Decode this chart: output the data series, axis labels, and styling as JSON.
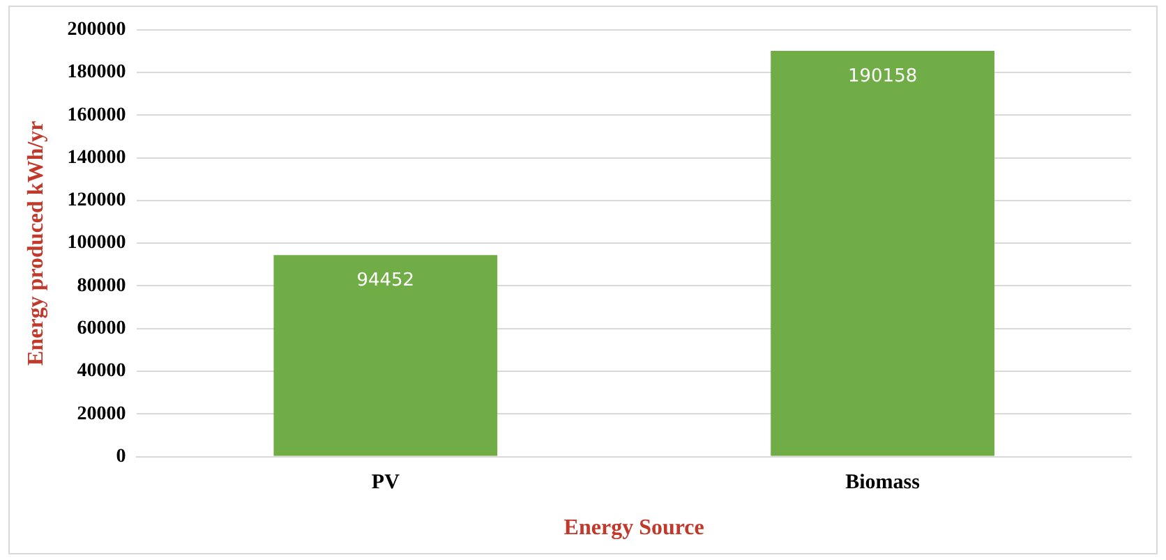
{
  "chart_data": {
    "type": "bar",
    "xlabel": "Energy Source",
    "ylabel": "Energy produced kWh/yr",
    "categories": [
      "PV",
      "Biomass"
    ],
    "values": [
      94452,
      190158
    ],
    "color": "#70ad47",
    "ylim": [
      0,
      200000
    ],
    "yticks": [
      0,
      20000,
      40000,
      60000,
      80000,
      100000,
      120000,
      140000,
      160000,
      180000,
      200000
    ],
    "grid": "y",
    "legend": false,
    "data_labels": true
  }
}
